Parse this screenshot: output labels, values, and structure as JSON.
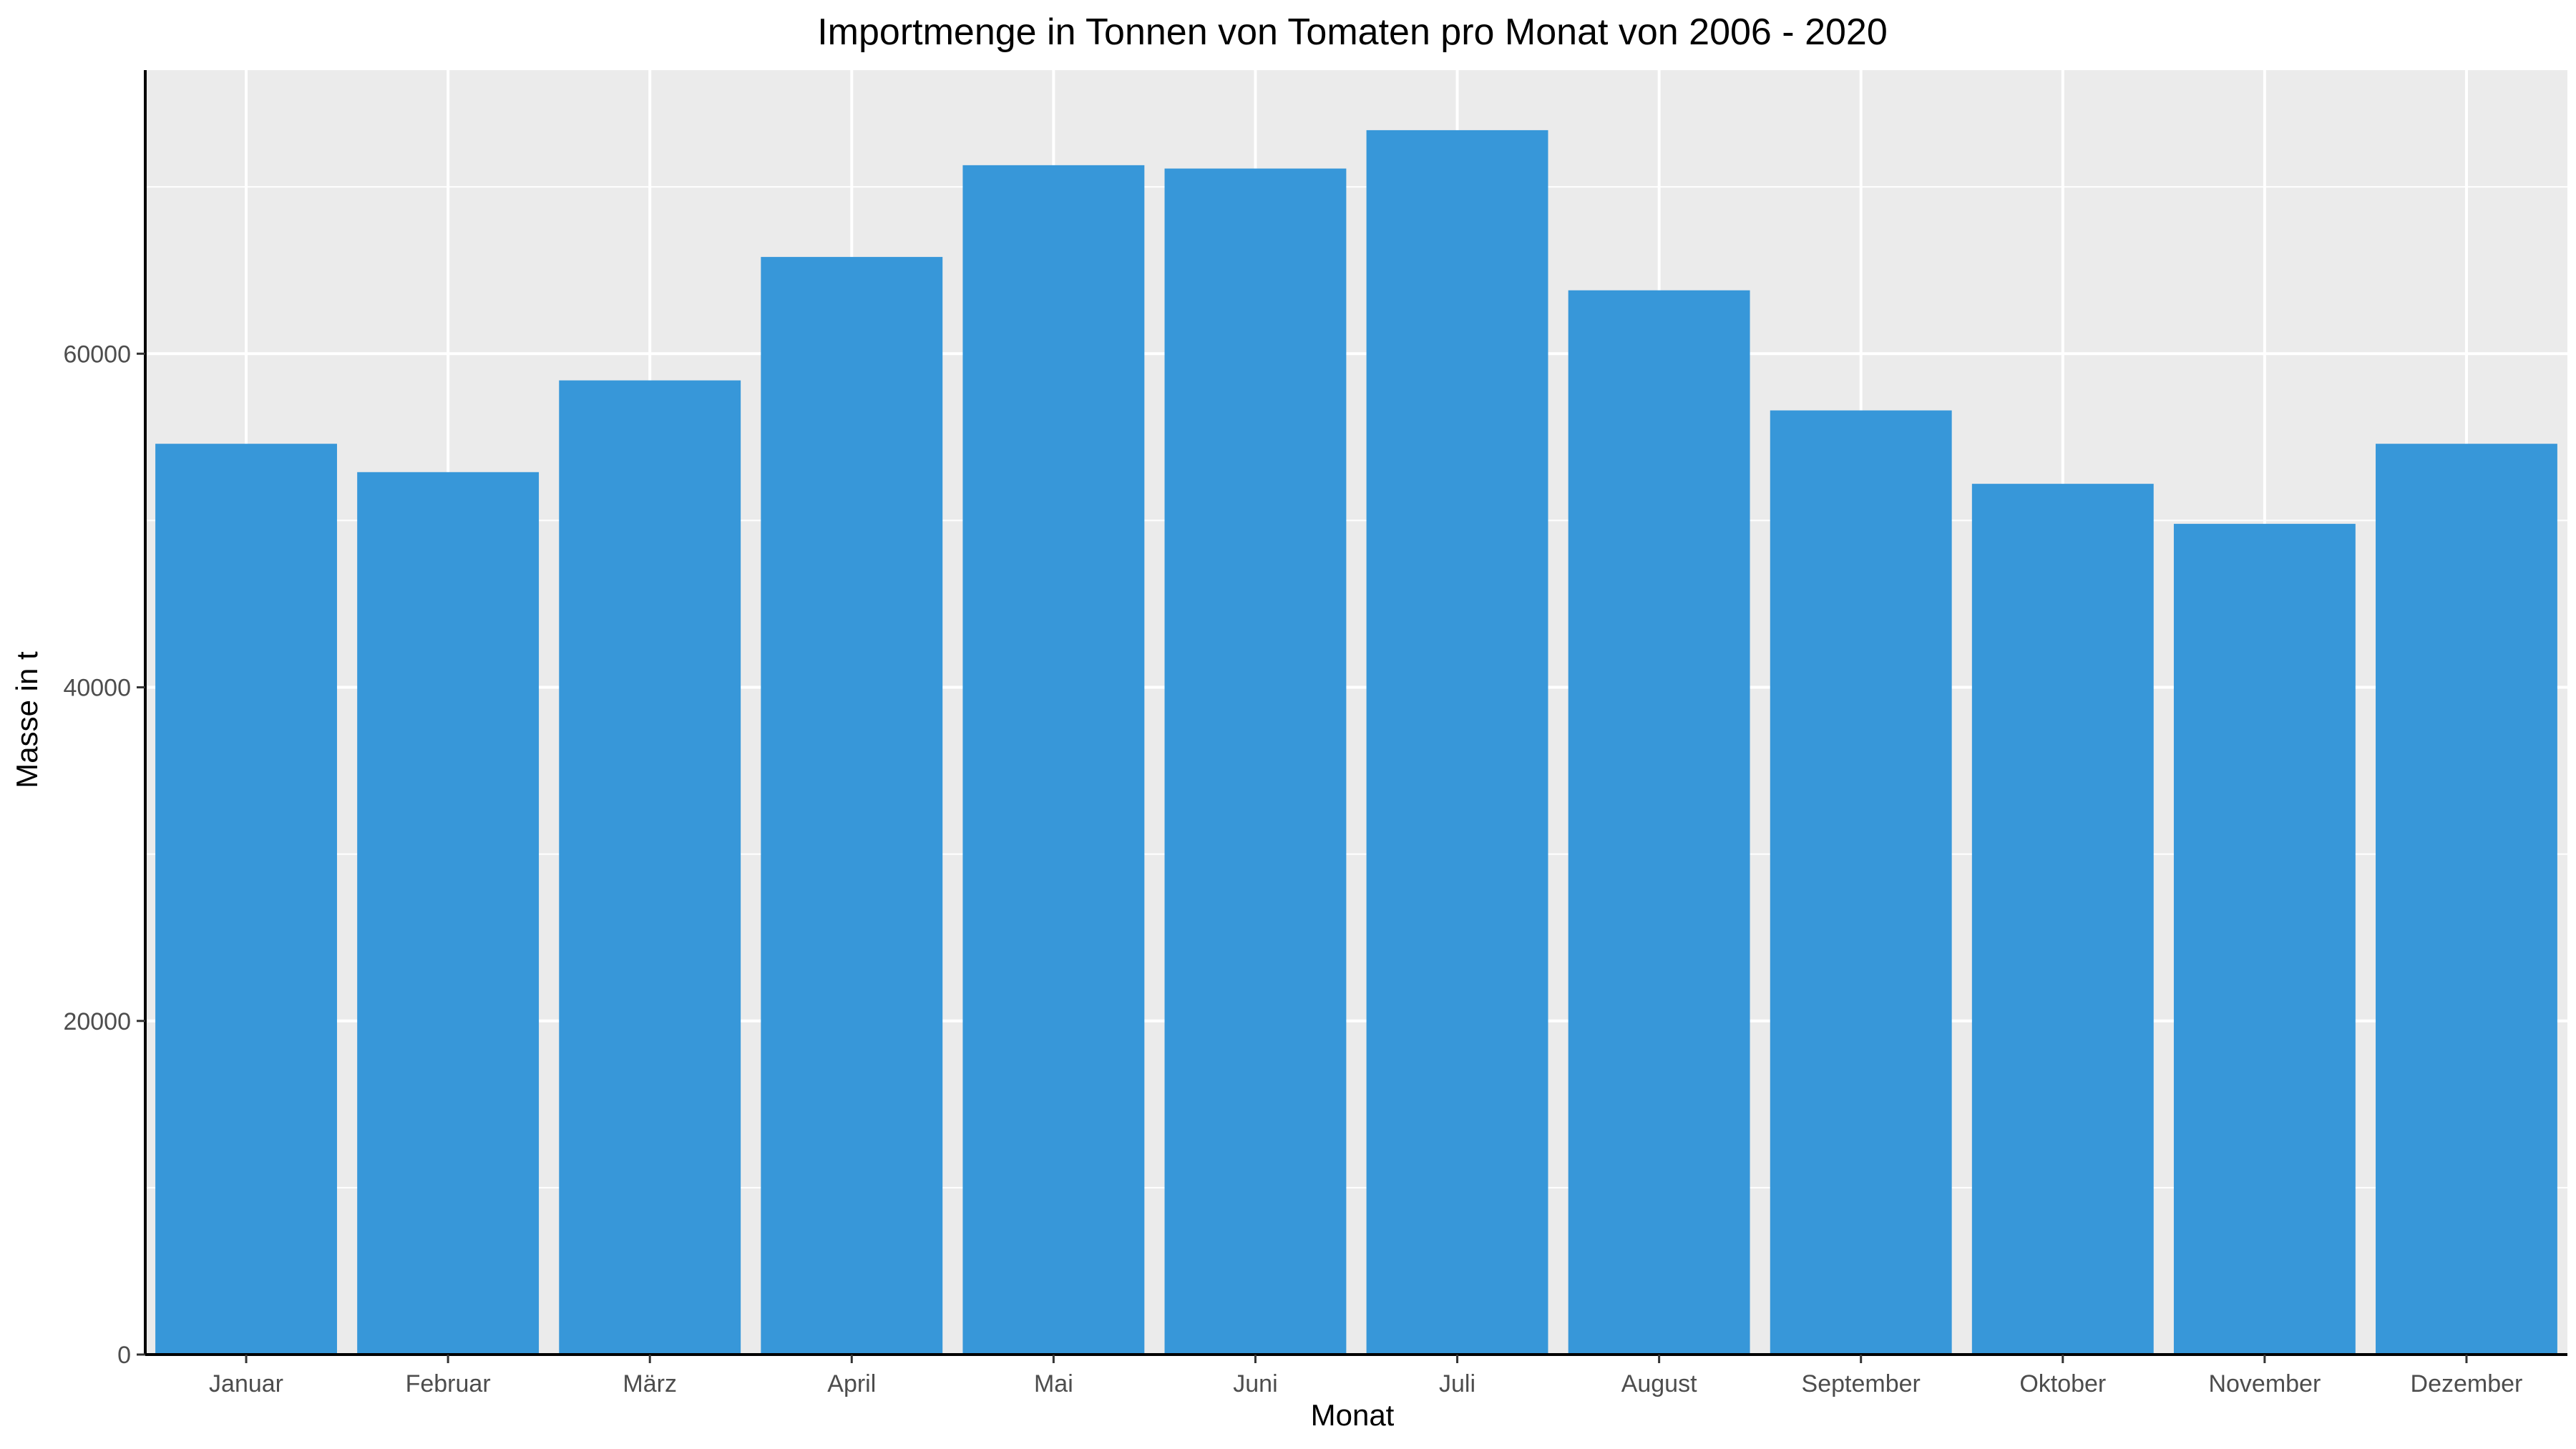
{
  "chart_data": {
    "type": "bar",
    "title": "Importmenge in Tonnen von Tomaten pro Monat von 2006 - 2020",
    "xlabel": "Monat",
    "ylabel": "Masse in t",
    "categories": [
      "Januar",
      "Februar",
      "März",
      "April",
      "Mai",
      "Juni",
      "Juli",
      "August",
      "September",
      "Oktober",
      "November",
      "Dezember"
    ],
    "values": [
      54600,
      52900,
      58400,
      65800,
      71300,
      71100,
      73400,
      63800,
      56600,
      52200,
      49800,
      54600
    ],
    "ylim": [
      0,
      77000
    ],
    "yticks": [
      0,
      20000,
      40000,
      60000
    ],
    "ytick_labels": [
      "0",
      "20000",
      "40000",
      "60000"
    ],
    "grid": true,
    "legend": "none",
    "bar_color": "#3797D9",
    "panel_background": "#EBEBEB",
    "grid_color": "#FFFFFF"
  }
}
